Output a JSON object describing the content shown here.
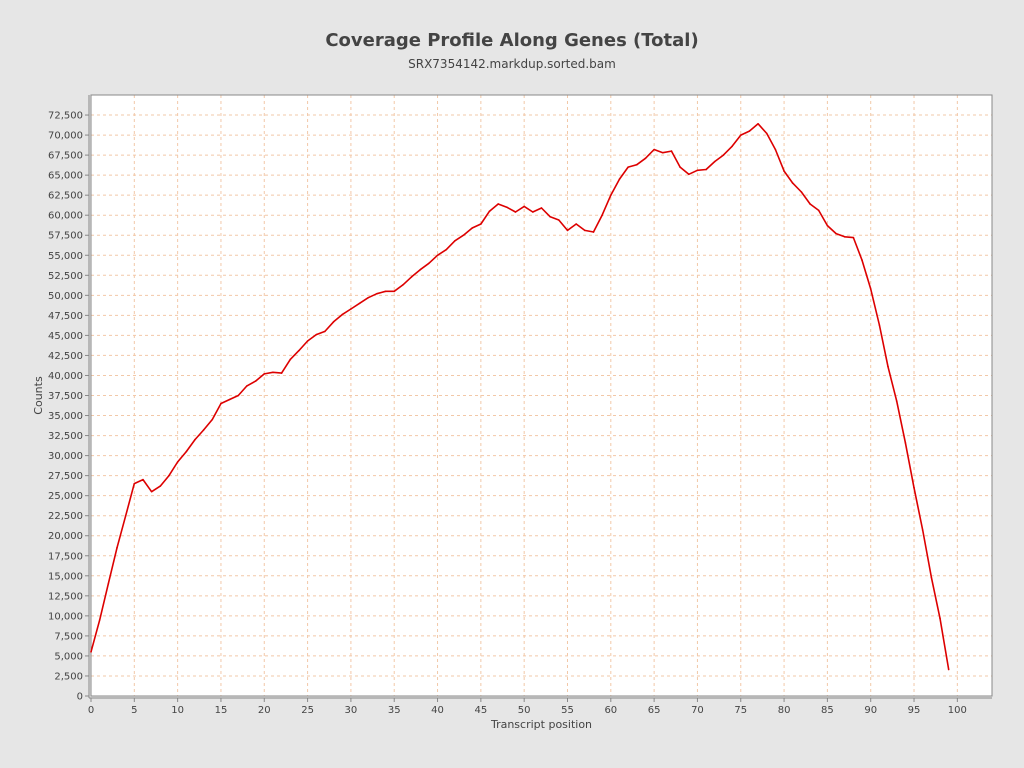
{
  "chart_data": {
    "type": "line",
    "title": "Coverage Profile Along Genes (Total)",
    "subtitle": "SRX7354142.markdup.sorted.bam",
    "xlabel": "Transcript position",
    "ylabel": "Counts",
    "xlim": [
      0,
      104
    ],
    "ylim": [
      0,
      75000
    ],
    "x_ticks": [
      0,
      5,
      10,
      15,
      20,
      25,
      30,
      35,
      40,
      45,
      50,
      55,
      60,
      65,
      70,
      75,
      80,
      85,
      90,
      95,
      100
    ],
    "y_ticks": [
      0,
      2500,
      5000,
      7500,
      10000,
      12500,
      15000,
      17500,
      20000,
      22500,
      25000,
      27500,
      30000,
      32500,
      35000,
      37500,
      40000,
      42500,
      45000,
      47500,
      50000,
      52500,
      55000,
      57500,
      60000,
      62500,
      65000,
      67500,
      70000,
      72500
    ],
    "y_tick_labels": [
      "0",
      "2,500",
      "5,000",
      "7,500",
      "10,000",
      "12,500",
      "15,000",
      "17,500",
      "20,000",
      "22,500",
      "25,000",
      "27,500",
      "30,000",
      "32,500",
      "35,000",
      "37,500",
      "40,000",
      "42,500",
      "45,000",
      "47,500",
      "50,000",
      "52,500",
      "55,000",
      "57,500",
      "60,000",
      "62,500",
      "65,000",
      "67,500",
      "70,000",
      "72,500"
    ],
    "grid": true,
    "series": [
      {
        "color": "#dd0000",
        "x": [
          0,
          1,
          2,
          3,
          4,
          5,
          6,
          7,
          8,
          9,
          10,
          11,
          12,
          13,
          14,
          15,
          16,
          17,
          18,
          19,
          20,
          21,
          22,
          23,
          24,
          25,
          26,
          27,
          28,
          29,
          30,
          31,
          32,
          33,
          34,
          35,
          36,
          37,
          38,
          39,
          40,
          41,
          42,
          43,
          44,
          45,
          46,
          47,
          48,
          49,
          50,
          51,
          52,
          53,
          54,
          55,
          56,
          57,
          58,
          59,
          60,
          61,
          62,
          63,
          64,
          65,
          66,
          67,
          68,
          69,
          70,
          71,
          72,
          73,
          74,
          75,
          76,
          77,
          78,
          79,
          80,
          81,
          82,
          83,
          84,
          85,
          86,
          87,
          88,
          89,
          90,
          91,
          92,
          93,
          94,
          95,
          96,
          97,
          98,
          99
        ],
        "y": [
          5500,
          9500,
          14000,
          18500,
          22500,
          26500,
          27000,
          25500,
          26200,
          27500,
          29200,
          30500,
          32000,
          33200,
          34500,
          36500,
          37000,
          37500,
          38700,
          39300,
          40200,
          40400,
          40300,
          42000,
          43100,
          44300,
          45100,
          45500,
          46700,
          47600,
          48300,
          49000,
          49700,
          50200,
          50500,
          50500,
          51300,
          52300,
          53200,
          54000,
          55000,
          55700,
          56800,
          57500,
          58400,
          58900,
          60500,
          61400,
          61000,
          60400,
          61100,
          60400,
          60900,
          59800,
          59400,
          58100,
          58900,
          58100,
          57900,
          60000,
          62500,
          64500,
          66000,
          66300,
          67100,
          68200,
          67800,
          68000,
          66000,
          65100,
          65600,
          65700,
          66700,
          67500,
          68600,
          70000,
          70500,
          71400,
          70200,
          68200,
          65500,
          64000,
          62900,
          61400,
          60600,
          58700,
          57700,
          57300,
          57200,
          54400,
          50800,
          46300,
          41100,
          36800,
          31600,
          26000,
          20700,
          14800,
          9700,
          3300
        ]
      }
    ]
  }
}
